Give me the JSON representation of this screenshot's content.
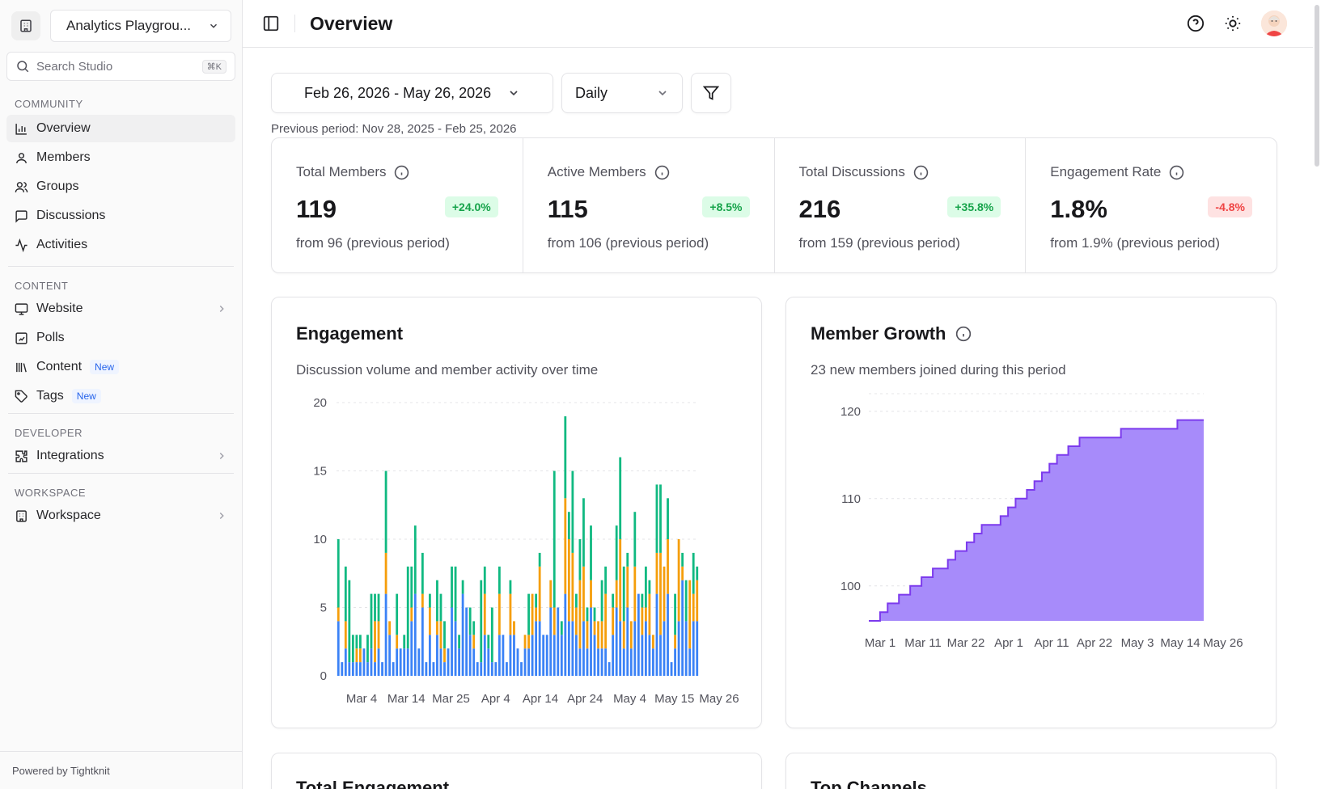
{
  "sidebar": {
    "workspace_name": "Analytics Playgrou...",
    "search_placeholder": "Search Studio",
    "search_shortcut": "⌘K",
    "sections": {
      "community": "COMMUNITY",
      "content": "CONTENT",
      "developer": "DEVELOPER",
      "workspace": "WORKSPACE"
    },
    "items": {
      "overview": "Overview",
      "members": "Members",
      "groups": "Groups",
      "discussions": "Discussions",
      "activities": "Activities",
      "website": "Website",
      "polls": "Polls",
      "content": "Content",
      "tags": "Tags",
      "integrations": "Integrations",
      "workspace": "Workspace"
    },
    "new_badge": "New",
    "powered_by": "Powered by Tightknit"
  },
  "header": {
    "title": "Overview"
  },
  "filters": {
    "date_range": "Feb 26, 2026 - May 26, 2026",
    "granularity": "Daily",
    "previous_period": "Previous period: Nov 28, 2025 - Feb 25, 2026"
  },
  "stats": [
    {
      "label": "Total Members",
      "value": "119",
      "delta": "+24.0%",
      "from": "from 96 (previous period)",
      "trend": "up"
    },
    {
      "label": "Active Members",
      "value": "115",
      "delta": "+8.5%",
      "from": "from 106 (previous period)",
      "trend": "up"
    },
    {
      "label": "Total Discussions",
      "value": "216",
      "delta": "+35.8%",
      "from": "from 159 (previous period)",
      "trend": "up"
    },
    {
      "label": "Engagement Rate",
      "value": "1.8%",
      "delta": "-4.8%",
      "from": "from 1.9% (previous period)",
      "trend": "down"
    }
  ],
  "cards": {
    "engagement": {
      "title": "Engagement",
      "description": "Discussion volume and member activity over time"
    },
    "member_growth": {
      "title": "Member Growth",
      "description": "23 new members joined during this period"
    },
    "total_engagement": {
      "title": "Total Engagement"
    },
    "top_channels": {
      "title": "Top Channels"
    }
  },
  "colors": {
    "blue": "#3b82f6",
    "orange": "#f59e0b",
    "green": "#10b981",
    "purple_fill": "#a78bfa",
    "purple_line": "#7c3aed"
  },
  "chart_data": [
    {
      "type": "bar",
      "stacked": true,
      "x_tick_labels": [
        "Mar 4",
        "Mar 14",
        "Mar 25",
        "Apr 4",
        "Apr 14",
        "Apr 24",
        "May 4",
        "May 15",
        "May 26"
      ],
      "ylim": [
        0,
        20
      ],
      "y_ticks": [
        0,
        5,
        10,
        15,
        20
      ],
      "grid": true,
      "series_colors": [
        "#3b82f6",
        "#f59e0b",
        "#10b981"
      ],
      "bars": [
        [
          4,
          1,
          5
        ],
        [
          1,
          0,
          0
        ],
        [
          2,
          2,
          4
        ],
        [
          1,
          0,
          6
        ],
        [
          1,
          0,
          2
        ],
        [
          1,
          1,
          1
        ],
        [
          1,
          1,
          1
        ],
        [
          2,
          0,
          0
        ],
        [
          1,
          0,
          2
        ],
        [
          2,
          0,
          4
        ],
        [
          1,
          3,
          2
        ],
        [
          2,
          2,
          2
        ],
        [
          1,
          0,
          0
        ],
        [
          6,
          3,
          6
        ],
        [
          3,
          1,
          0
        ],
        [
          1,
          0,
          0
        ],
        [
          2,
          1,
          3
        ],
        [
          2,
          0,
          0
        ],
        [
          2,
          0,
          1
        ],
        [
          2,
          0,
          6
        ],
        [
          4,
          1,
          3
        ],
        [
          6,
          0,
          5
        ],
        [
          2,
          0,
          0
        ],
        [
          5,
          1,
          3
        ],
        [
          1,
          0,
          0
        ],
        [
          3,
          2,
          1
        ],
        [
          1,
          0,
          0
        ],
        [
          3,
          1,
          3
        ],
        [
          2,
          2,
          2
        ],
        [
          1,
          1,
          2
        ],
        [
          2,
          0,
          0
        ],
        [
          5,
          0,
          3
        ],
        [
          4,
          0,
          4
        ],
        [
          2,
          0,
          1
        ],
        [
          6,
          0,
          1
        ],
        [
          5,
          0,
          0
        ],
        [
          3,
          0,
          2
        ],
        [
          2,
          1,
          1
        ],
        [
          1,
          0,
          0
        ],
        [
          1,
          0,
          6
        ],
        [
          3,
          3,
          2
        ],
        [
          2,
          0,
          1
        ],
        [
          1,
          0,
          4
        ],
        [
          1,
          0,
          0
        ],
        [
          3,
          3,
          2
        ],
        [
          3,
          0,
          0
        ],
        [
          1,
          0,
          0
        ],
        [
          3,
          3,
          1
        ],
        [
          3,
          1,
          0
        ],
        [
          2,
          0,
          0
        ],
        [
          1,
          0,
          0
        ],
        [
          2,
          1,
          0
        ],
        [
          2,
          1,
          3
        ],
        [
          3,
          3,
          0
        ],
        [
          4,
          1,
          1
        ],
        [
          4,
          4,
          1
        ],
        [
          3,
          0,
          0
        ],
        [
          3,
          0,
          0
        ],
        [
          5,
          2,
          0
        ],
        [
          3,
          2,
          10
        ],
        [
          5,
          0,
          0
        ],
        [
          3,
          0,
          1
        ],
        [
          6,
          7,
          6
        ],
        [
          4,
          6,
          2
        ],
        [
          4,
          5,
          6
        ],
        [
          3,
          2,
          1
        ],
        [
          2,
          5,
          3
        ],
        [
          4,
          4,
          5
        ],
        [
          2,
          2,
          1
        ],
        [
          5,
          2,
          4
        ],
        [
          3,
          1,
          1
        ],
        [
          2,
          2,
          0
        ],
        [
          2,
          2,
          3
        ],
        [
          2,
          4,
          2
        ],
        [
          1,
          0,
          0
        ],
        [
          3,
          2,
          1
        ],
        [
          5,
          2,
          4
        ],
        [
          4,
          6,
          6
        ],
        [
          2,
          2,
          4
        ],
        [
          5,
          3,
          1
        ],
        [
          2,
          2,
          0
        ],
        [
          4,
          4,
          4
        ],
        [
          6,
          0,
          0
        ],
        [
          3,
          2,
          1
        ],
        [
          4,
          1,
          3
        ],
        [
          3,
          3,
          1
        ],
        [
          2,
          1,
          0
        ],
        [
          6,
          3,
          5
        ],
        [
          3,
          6,
          5
        ],
        [
          4,
          4,
          0
        ],
        [
          6,
          4,
          3
        ],
        [
          1,
          0,
          0
        ],
        [
          2,
          1,
          3
        ],
        [
          4,
          6,
          0
        ],
        [
          7,
          1,
          1
        ],
        [
          4,
          0,
          3
        ],
        [
          2,
          5,
          0
        ],
        [
          4,
          2,
          3
        ],
        [
          4,
          3,
          1
        ]
      ]
    },
    {
      "type": "area",
      "x_tick_labels": [
        "Mar 1",
        "Mar 11",
        "Mar 22",
        "Apr 1",
        "Apr 11",
        "Apr 22",
        "May 3",
        "May 14",
        "May 26"
      ],
      "ylim": [
        96,
        121
      ],
      "y_ticks": [
        100,
        110,
        120
      ],
      "grid": true,
      "start_value": 96,
      "end_value": 119,
      "values": [
        96,
        96,
        96,
        97,
        97,
        98,
        98,
        98,
        99,
        99,
        99,
        100,
        100,
        100,
        101,
        101,
        101,
        102,
        102,
        102,
        102,
        103,
        103,
        104,
        104,
        104,
        105,
        105,
        106,
        106,
        107,
        107,
        107,
        107,
        107,
        108,
        108,
        109,
        109,
        110,
        110,
        110,
        111,
        111,
        112,
        112,
        113,
        113,
        114,
        114,
        115,
        115,
        115,
        116,
        116,
        116,
        117,
        117,
        117,
        117,
        117,
        117,
        117,
        117,
        117,
        117,
        117,
        118,
        118,
        118,
        118,
        118,
        118,
        118,
        118,
        118,
        118,
        118,
        118,
        118,
        118,
        118,
        119,
        119,
        119,
        119,
        119,
        119,
        119
      ]
    }
  ]
}
